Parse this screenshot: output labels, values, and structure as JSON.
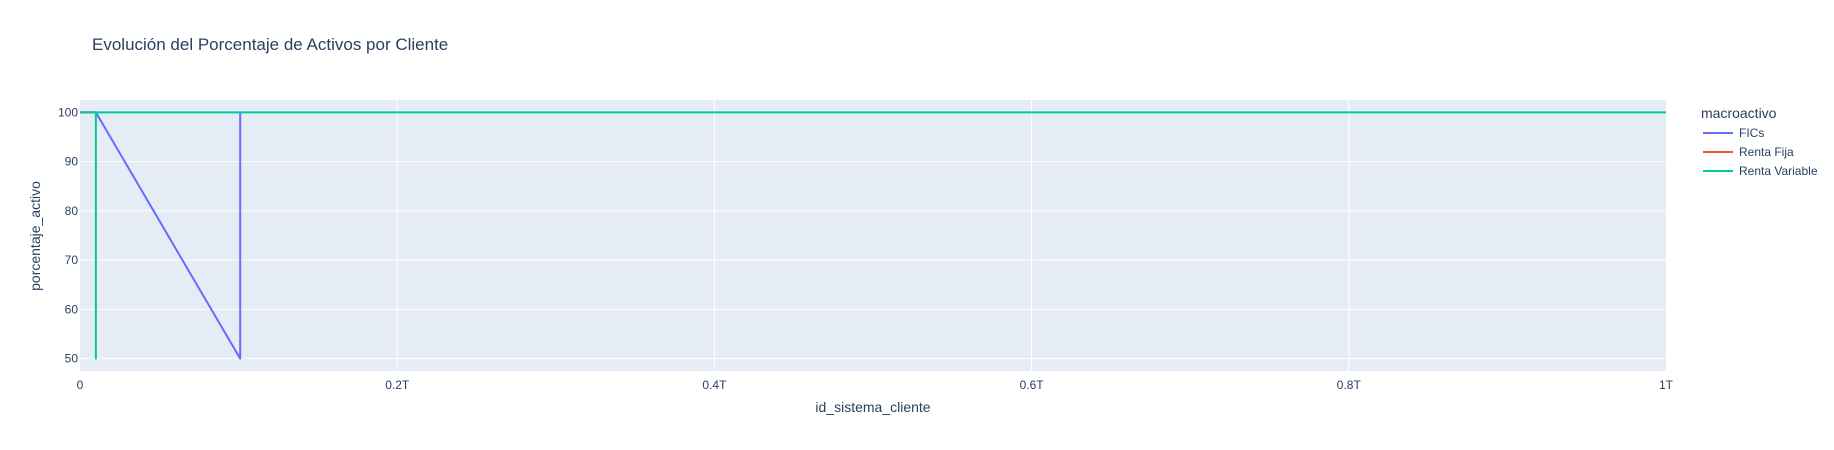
{
  "chart_data": {
    "type": "line",
    "title": "Evolución del Porcentaje de Activos por Cliente",
    "xlabel": "id_sistema_cliente",
    "ylabel": "porcentaje_activo",
    "xlim": [
      0,
      1000000000000
    ],
    "ylim": [
      47.5,
      102.5
    ],
    "x_ticks": [
      {
        "value": 0,
        "label": "0"
      },
      {
        "value": 200000000000,
        "label": "0.2T"
      },
      {
        "value": 400000000000,
        "label": "0.4T"
      },
      {
        "value": 600000000000,
        "label": "0.6T"
      },
      {
        "value": 800000000000,
        "label": "0.8T"
      },
      {
        "value": 1000000000000,
        "label": "1T"
      }
    ],
    "y_ticks": [
      {
        "value": 50,
        "label": "50"
      },
      {
        "value": 60,
        "label": "60"
      },
      {
        "value": 70,
        "label": "70"
      },
      {
        "value": 80,
        "label": "80"
      },
      {
        "value": 90,
        "label": "90"
      },
      {
        "value": 100,
        "label": "100"
      }
    ],
    "grid": true,
    "legend": {
      "title": "macroactivo",
      "placement": "right"
    },
    "series": [
      {
        "name": "FICs",
        "color": "#636efa",
        "x": [
          0,
          10000000000,
          101000000000,
          101000000000
        ],
        "y": [
          100,
          100,
          50,
          100
        ]
      },
      {
        "name": "Renta Fija",
        "color": "#ef553b",
        "x": [
          0,
          10000000000
        ],
        "y": [
          100,
          100
        ]
      },
      {
        "name": "Renta Variable",
        "color": "#00cc96",
        "x": [
          0,
          10000000000,
          10000000000,
          10000000000,
          1000000000000
        ],
        "y": [
          100,
          100,
          50,
          100,
          100
        ]
      }
    ]
  }
}
